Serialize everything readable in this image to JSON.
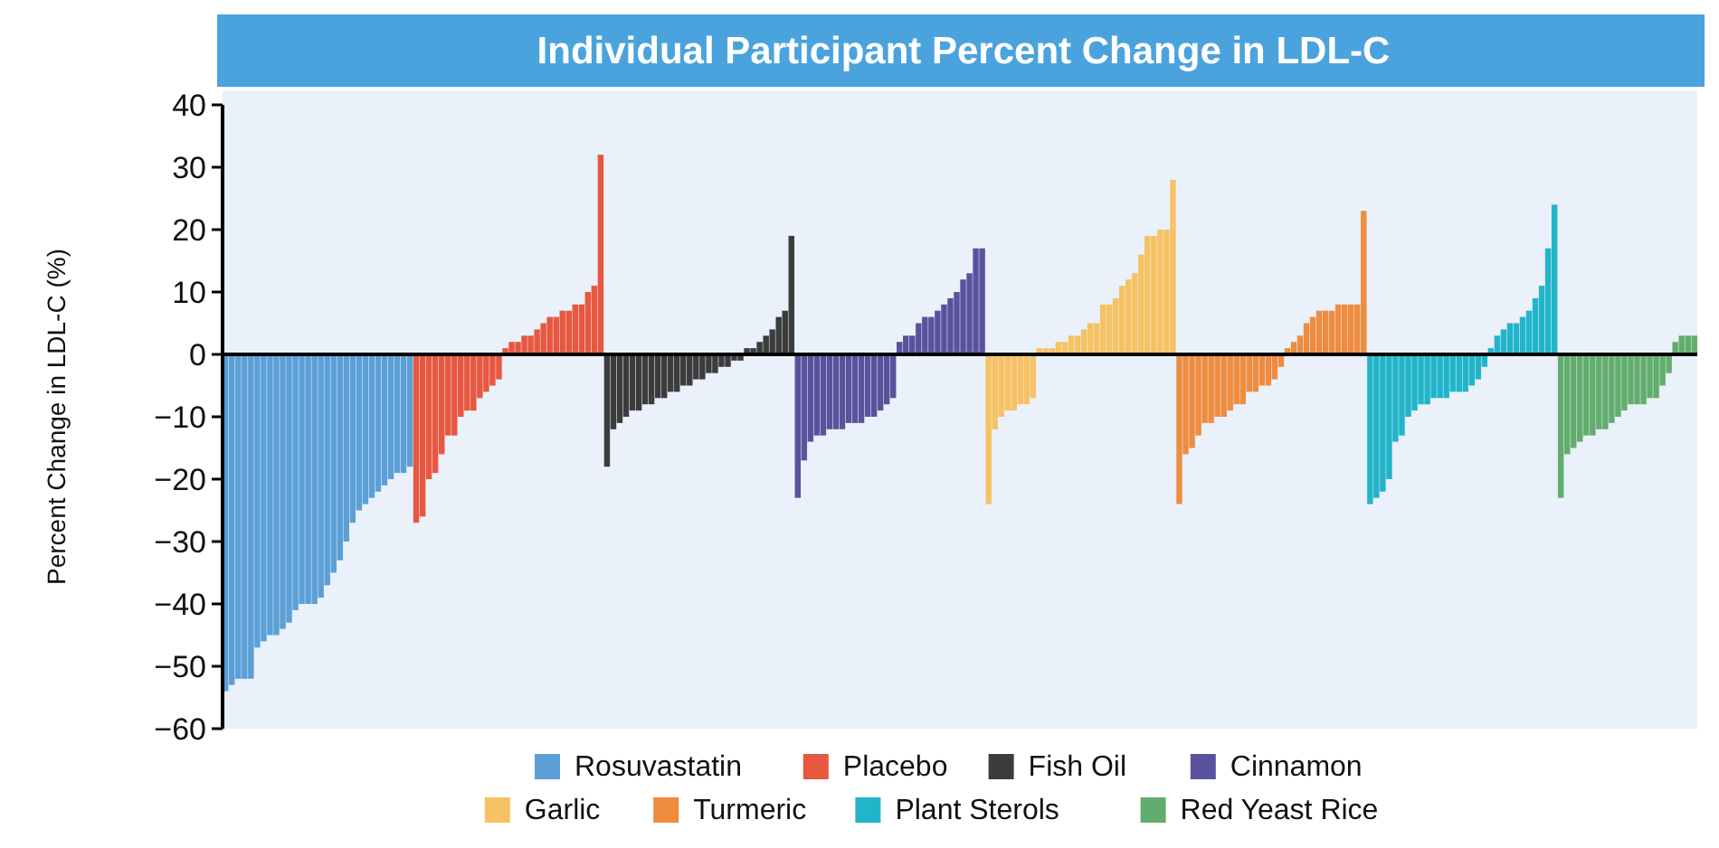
{
  "chart_data": {
    "type": "bar",
    "title": "Individual Participant Percent Change in LDL-C",
    "ylabel": "Percent Change in LDL-C (%)",
    "ylim": [
      -60,
      40
    ],
    "yticks": [
      -60,
      -50,
      -40,
      -30,
      -20,
      -10,
      0,
      10,
      20,
      30,
      40
    ],
    "legend": "bottom",
    "categories": [
      null,
      null,
      null,
      null,
      null,
      null,
      null,
      null,
      null,
      null,
      null,
      null,
      null,
      null,
      null,
      null,
      null,
      null,
      null,
      null,
      null,
      null,
      null,
      null,
      null,
      null,
      null,
      null,
      null,
      null,
      null,
      null,
      null,
      null,
      null,
      null,
      null,
      null,
      null,
      null,
      null,
      null,
      null,
      null,
      null,
      null,
      null,
      null,
      null,
      null,
      null,
      null,
      null,
      null,
      null,
      null,
      null,
      null,
      null,
      null,
      null,
      null,
      null,
      null,
      null,
      null,
      null,
      null,
      null,
      null,
      null,
      null,
      null,
      null,
      null,
      null,
      null,
      null,
      null,
      null,
      null,
      null,
      null,
      null,
      null,
      null,
      null,
      null,
      null,
      null,
      null,
      null,
      null,
      null,
      null,
      null,
      null,
      null,
      null,
      null,
      null,
      null,
      null,
      null,
      null,
      null,
      null,
      null,
      null,
      null,
      null,
      null,
      null,
      null,
      null,
      null,
      null,
      null,
      null,
      null,
      null,
      null,
      null,
      null,
      null,
      null,
      null,
      null,
      null,
      null,
      null,
      null,
      null,
      null,
      null,
      null,
      null,
      null,
      null,
      null,
      null,
      null,
      null,
      null,
      null,
      null,
      null,
      null,
      null,
      null,
      null,
      null,
      null,
      null,
      null,
      null,
      null,
      null,
      null,
      null,
      null,
      null,
      null,
      null,
      null,
      null,
      null,
      null,
      null,
      null,
      null,
      null,
      null,
      null,
      null,
      null,
      null,
      null,
      null,
      null,
      null,
      null,
      null,
      null,
      null,
      null,
      null,
      null,
      null,
      null,
      null,
      null,
      null,
      null,
      null,
      null,
      null,
      null,
      null,
      null,
      null,
      null,
      null,
      null,
      null,
      null,
      null,
      null,
      null,
      null,
      null,
      null,
      null,
      null,
      null,
      null,
      null,
      null,
      null,
      null,
      null,
      null,
      null,
      null,
      null,
      null,
      null,
      null,
      null,
      null,
      null,
      null
    ],
    "series": [
      {
        "name": "Rosuvastatin",
        "color": "#5b9fd6",
        "values": [
          -54,
          -53,
          -52,
          -52,
          -52,
          -47,
          -46,
          -45,
          -45,
          -44,
          -43,
          -41,
          -40,
          -40,
          -40,
          -39,
          -37,
          -35,
          -33,
          -30,
          -27,
          -25,
          -24,
          -23,
          -22,
          -21,
          -20,
          -19,
          -19,
          -18,
          null,
          null,
          null,
          null,
          null,
          null,
          null,
          null,
          null,
          null,
          null,
          null,
          null,
          null,
          null,
          null,
          null,
          null,
          null,
          null,
          null,
          null,
          null,
          null,
          null,
          null,
          null,
          null,
          null,
          null,
          null,
          null,
          null,
          null,
          null,
          null,
          null,
          null,
          null,
          null,
          null,
          null,
          null,
          null,
          null,
          null,
          null,
          null,
          null,
          null,
          null,
          null,
          null,
          null,
          null,
          null,
          null,
          null,
          null,
          null,
          null,
          null,
          null,
          null,
          null,
          null,
          null,
          null,
          null,
          null,
          null,
          null,
          null,
          null,
          null,
          null,
          null,
          null,
          null,
          null,
          null,
          null,
          null,
          null,
          null,
          null,
          null,
          null,
          null,
          null,
          null,
          null,
          null,
          null,
          null,
          null,
          null,
          null,
          null,
          null,
          null,
          null,
          null,
          null,
          null,
          null,
          null,
          null,
          null,
          null,
          null,
          null,
          null,
          null,
          null,
          null,
          null,
          null,
          null,
          null,
          null,
          null,
          null,
          null,
          null,
          null,
          null,
          null,
          null,
          null,
          null,
          null,
          null,
          null,
          null,
          null,
          null,
          null,
          null,
          null,
          null,
          null,
          null,
          null,
          null,
          null,
          null,
          null,
          null,
          null,
          null,
          null,
          null,
          null,
          null,
          null,
          null,
          null,
          null,
          null,
          null,
          null,
          null,
          null,
          null,
          null,
          null,
          null,
          null,
          null,
          null,
          null,
          null,
          null,
          null,
          null,
          null,
          null,
          null,
          null,
          null,
          null,
          null,
          null,
          null,
          null,
          null,
          null,
          null,
          null,
          null,
          null,
          null,
          null,
          null,
          null,
          null,
          null,
          null,
          null,
          null,
          null
        ]
      },
      {
        "name": "Placebo",
        "color": "#e8573f",
        "values": [
          null,
          null,
          null,
          null,
          null,
          null,
          null,
          null,
          null,
          null,
          null,
          null,
          null,
          null,
          null,
          null,
          null,
          null,
          null,
          null,
          null,
          null,
          null,
          null,
          null,
          null,
          null,
          null,
          null,
          null,
          -27,
          -26,
          -20,
          -19,
          -16,
          -13,
          -13,
          -10,
          -9,
          -9,
          -7,
          -6,
          -5,
          -4,
          1,
          2,
          2,
          3,
          3,
          4,
          5,
          6,
          6,
          7,
          7,
          8,
          8,
          10,
          11,
          32,
          null,
          null,
          null,
          null,
          null,
          null,
          null,
          null,
          null,
          null,
          null,
          null,
          null,
          null,
          null,
          null,
          null,
          null,
          null,
          null,
          null,
          null,
          null,
          null,
          null,
          null,
          null,
          null,
          null,
          null,
          null,
          null,
          null,
          null,
          null,
          null,
          null,
          null,
          null,
          null,
          null,
          null,
          null,
          null,
          null,
          null,
          null,
          null,
          null,
          null,
          null,
          null,
          null,
          null,
          null,
          null,
          null,
          null,
          null,
          null,
          null,
          null,
          null,
          null,
          null,
          null,
          null,
          null,
          null,
          null,
          null,
          null,
          null,
          null,
          null,
          null,
          null,
          null,
          null,
          null,
          null,
          null,
          null,
          null,
          null,
          null,
          null,
          null,
          null,
          null,
          null,
          null,
          null,
          null,
          null,
          null,
          null,
          null,
          null,
          null,
          null,
          null,
          null,
          null,
          null,
          null,
          null,
          null,
          null,
          null,
          null,
          null,
          null,
          null,
          null,
          null,
          null,
          null,
          null,
          null,
          null,
          null,
          null,
          null,
          null,
          null,
          null,
          null,
          null,
          null,
          null,
          null,
          null,
          null,
          null,
          null,
          null,
          null,
          null,
          null,
          null,
          null,
          null,
          null,
          null,
          null,
          null,
          null,
          null,
          null,
          null,
          null,
          null,
          null,
          null,
          null,
          null,
          null,
          null,
          null,
          null,
          null,
          null,
          null,
          null,
          null,
          null,
          null,
          null,
          null,
          null,
          null
        ]
      },
      {
        "name": "Fish Oil",
        "color": "#3c3c3c",
        "values": [
          null,
          null,
          null,
          null,
          null,
          null,
          null,
          null,
          null,
          null,
          null,
          null,
          null,
          null,
          null,
          null,
          null,
          null,
          null,
          null,
          null,
          null,
          null,
          null,
          null,
          null,
          null,
          null,
          null,
          null,
          null,
          null,
          null,
          null,
          null,
          null,
          null,
          null,
          null,
          null,
          null,
          null,
          null,
          null,
          null,
          null,
          null,
          null,
          null,
          null,
          null,
          null,
          null,
          null,
          null,
          null,
          null,
          null,
          null,
          null,
          -18,
          -12,
          -11,
          -10,
          -9,
          -9,
          -8,
          -8,
          -7,
          -7,
          -6,
          -6,
          -5,
          -5,
          -4,
          -4,
          -3,
          -3,
          -2,
          -2,
          -1,
          -1,
          1,
          1,
          2,
          3,
          4,
          6,
          7,
          19,
          null,
          null,
          null,
          null,
          null,
          null,
          null,
          null,
          null,
          null,
          null,
          null,
          null,
          null,
          null,
          null,
          null,
          null,
          null,
          null,
          null,
          null,
          null,
          null,
          null,
          null,
          null,
          null,
          null,
          null,
          null,
          null,
          null,
          null,
          null,
          null,
          null,
          null,
          null,
          null,
          null,
          null,
          null,
          null,
          null,
          null,
          null,
          null,
          null,
          null,
          null,
          null,
          null,
          null,
          null,
          null,
          null,
          null,
          null,
          null,
          null,
          null,
          null,
          null,
          null,
          null,
          null,
          null,
          null,
          null,
          null,
          null,
          null,
          null,
          null,
          null,
          null,
          null,
          null,
          null,
          null,
          null,
          null,
          null,
          null,
          null,
          null,
          null,
          null,
          null,
          null,
          null,
          null,
          null,
          null,
          null,
          null,
          null,
          null,
          null,
          null,
          null,
          null,
          null,
          null,
          null,
          null,
          null,
          null,
          null,
          null,
          null,
          null,
          null,
          null,
          null,
          null,
          null,
          null,
          null,
          null,
          null,
          null,
          null,
          null,
          null,
          null,
          null,
          null,
          null,
          null,
          null,
          null,
          null,
          null,
          null,
          null,
          null,
          null,
          null,
          null,
          null
        ]
      },
      {
        "name": "Cinnamon",
        "color": "#5b529e",
        "values": [
          null,
          null,
          null,
          null,
          null,
          null,
          null,
          null,
          null,
          null,
          null,
          null,
          null,
          null,
          null,
          null,
          null,
          null,
          null,
          null,
          null,
          null,
          null,
          null,
          null,
          null,
          null,
          null,
          null,
          null,
          null,
          null,
          null,
          null,
          null,
          null,
          null,
          null,
          null,
          null,
          null,
          null,
          null,
          null,
          null,
          null,
          null,
          null,
          null,
          null,
          null,
          null,
          null,
          null,
          null,
          null,
          null,
          null,
          null,
          null,
          null,
          null,
          null,
          null,
          null,
          null,
          null,
          null,
          null,
          null,
          null,
          null,
          null,
          null,
          null,
          null,
          null,
          null,
          null,
          null,
          null,
          null,
          null,
          null,
          null,
          null,
          null,
          null,
          null,
          null,
          -23,
          -17,
          -14,
          -13,
          -13,
          -12,
          -12,
          -12,
          -11,
          -11,
          -11,
          -10,
          -10,
          -9,
          -8,
          -7,
          2,
          3,
          3,
          5,
          6,
          6,
          7,
          8,
          9,
          10,
          12,
          13,
          17,
          17,
          null,
          null,
          null,
          null,
          null,
          null,
          null,
          null,
          null,
          null,
          null,
          null,
          null,
          null,
          null,
          null,
          null,
          null,
          null,
          null,
          null,
          null,
          null,
          null,
          null,
          null,
          null,
          null,
          null,
          null,
          null,
          null,
          null,
          null,
          null,
          null,
          null,
          null,
          null,
          null,
          null,
          null,
          null,
          null,
          null,
          null,
          null,
          null,
          null,
          null,
          null,
          null,
          null,
          null,
          null,
          null,
          null,
          null,
          null,
          null,
          null,
          null,
          null,
          null,
          null,
          null,
          null,
          null,
          null,
          null,
          null,
          null,
          null,
          null,
          null,
          null,
          null,
          null,
          null,
          null,
          null,
          null,
          null,
          null,
          null,
          null,
          null,
          null,
          null,
          null,
          null,
          null,
          null,
          null,
          null,
          null,
          null,
          null,
          null,
          null,
          null,
          null,
          null,
          null,
          null,
          null,
          null,
          null,
          null,
          null,
          null,
          null
        ]
      },
      {
        "name": "Garlic",
        "color": "#f6c264",
        "values": [
          null,
          null,
          null,
          null,
          null,
          null,
          null,
          null,
          null,
          null,
          null,
          null,
          null,
          null,
          null,
          null,
          null,
          null,
          null,
          null,
          null,
          null,
          null,
          null,
          null,
          null,
          null,
          null,
          null,
          null,
          null,
          null,
          null,
          null,
          null,
          null,
          null,
          null,
          null,
          null,
          null,
          null,
          null,
          null,
          null,
          null,
          null,
          null,
          null,
          null,
          null,
          null,
          null,
          null,
          null,
          null,
          null,
          null,
          null,
          null,
          null,
          null,
          null,
          null,
          null,
          null,
          null,
          null,
          null,
          null,
          null,
          null,
          null,
          null,
          null,
          null,
          null,
          null,
          null,
          null,
          null,
          null,
          null,
          null,
          null,
          null,
          null,
          null,
          null,
          null,
          null,
          null,
          null,
          null,
          null,
          null,
          null,
          null,
          null,
          null,
          null,
          null,
          null,
          null,
          null,
          null,
          null,
          null,
          null,
          null,
          null,
          null,
          null,
          null,
          null,
          null,
          null,
          null,
          null,
          null,
          -24,
          -12,
          -10,
          -9,
          -9,
          -8,
          -8,
          -7,
          1,
          1,
          1,
          2,
          2,
          3,
          3,
          4,
          5,
          5,
          8,
          8,
          9,
          11,
          12,
          13,
          16,
          19,
          19,
          20,
          20,
          28,
          null,
          null,
          null,
          null,
          null,
          null,
          null,
          null,
          null,
          null,
          null,
          null,
          null,
          null,
          null,
          null,
          null,
          null,
          null,
          null,
          null,
          null,
          null,
          null,
          null,
          null,
          null,
          null,
          null,
          null,
          null,
          null,
          null,
          null,
          null,
          null,
          null,
          null,
          null,
          null,
          null,
          null,
          null,
          null,
          null,
          null,
          null,
          null,
          null,
          null,
          null,
          null,
          null,
          null,
          null,
          null,
          null,
          null,
          null,
          null,
          null,
          null,
          null,
          null,
          null,
          null,
          null,
          null,
          null,
          null,
          null,
          null,
          null,
          null,
          null,
          null,
          null,
          null,
          null,
          null,
          null,
          null
        ]
      },
      {
        "name": "Turmeric",
        "color": "#ee8c40",
        "values": [
          null,
          null,
          null,
          null,
          null,
          null,
          null,
          null,
          null,
          null,
          null,
          null,
          null,
          null,
          null,
          null,
          null,
          null,
          null,
          null,
          null,
          null,
          null,
          null,
          null,
          null,
          null,
          null,
          null,
          null,
          null,
          null,
          null,
          null,
          null,
          null,
          null,
          null,
          null,
          null,
          null,
          null,
          null,
          null,
          null,
          null,
          null,
          null,
          null,
          null,
          null,
          null,
          null,
          null,
          null,
          null,
          null,
          null,
          null,
          null,
          null,
          null,
          null,
          null,
          null,
          null,
          null,
          null,
          null,
          null,
          null,
          null,
          null,
          null,
          null,
          null,
          null,
          null,
          null,
          null,
          null,
          null,
          null,
          null,
          null,
          null,
          null,
          null,
          null,
          null,
          null,
          null,
          null,
          null,
          null,
          null,
          null,
          null,
          null,
          null,
          null,
          null,
          null,
          null,
          null,
          null,
          null,
          null,
          null,
          null,
          null,
          null,
          null,
          null,
          null,
          null,
          null,
          null,
          null,
          null,
          null,
          null,
          null,
          null,
          null,
          null,
          null,
          null,
          null,
          null,
          null,
          null,
          null,
          null,
          null,
          null,
          null,
          null,
          null,
          null,
          null,
          null,
          null,
          null,
          null,
          null,
          null,
          null,
          null,
          null,
          -24,
          -16,
          -15,
          -13,
          -11,
          -11,
          -10,
          -10,
          -9,
          -8,
          -8,
          -6,
          -6,
          -5,
          -5,
          -4,
          -2,
          1,
          2,
          3,
          5,
          6,
          7,
          7,
          7,
          8,
          8,
          8,
          8,
          23,
          null,
          null,
          null,
          null,
          null,
          null,
          null,
          null,
          null,
          null,
          null,
          null,
          null,
          null,
          null,
          null,
          null,
          null,
          null,
          null,
          null,
          null,
          null,
          null,
          null,
          null,
          null,
          null,
          null,
          null,
          null,
          null,
          null,
          null,
          null,
          null,
          null,
          null,
          null,
          null,
          null,
          null,
          null,
          null,
          null,
          null,
          null,
          null,
          null,
          null,
          null,
          null
        ]
      },
      {
        "name": "Plant Sterols",
        "color": "#22b5c9",
        "values": [
          null,
          null,
          null,
          null,
          null,
          null,
          null,
          null,
          null,
          null,
          null,
          null,
          null,
          null,
          null,
          null,
          null,
          null,
          null,
          null,
          null,
          null,
          null,
          null,
          null,
          null,
          null,
          null,
          null,
          null,
          null,
          null,
          null,
          null,
          null,
          null,
          null,
          null,
          null,
          null,
          null,
          null,
          null,
          null,
          null,
          null,
          null,
          null,
          null,
          null,
          null,
          null,
          null,
          null,
          null,
          null,
          null,
          null,
          null,
          null,
          null,
          null,
          null,
          null,
          null,
          null,
          null,
          null,
          null,
          null,
          null,
          null,
          null,
          null,
          null,
          null,
          null,
          null,
          null,
          null,
          null,
          null,
          null,
          null,
          null,
          null,
          null,
          null,
          null,
          null,
          null,
          null,
          null,
          null,
          null,
          null,
          null,
          null,
          null,
          null,
          null,
          null,
          null,
          null,
          null,
          null,
          null,
          null,
          null,
          null,
          null,
          null,
          null,
          null,
          null,
          null,
          null,
          null,
          null,
          null,
          null,
          null,
          null,
          null,
          null,
          null,
          null,
          null,
          null,
          null,
          null,
          null,
          null,
          null,
          null,
          null,
          null,
          null,
          null,
          null,
          null,
          null,
          null,
          null,
          null,
          null,
          null,
          null,
          null,
          null,
          null,
          null,
          null,
          null,
          null,
          null,
          null,
          null,
          null,
          null,
          null,
          null,
          null,
          null,
          null,
          null,
          null,
          null,
          null,
          null,
          null,
          null,
          null,
          null,
          null,
          null,
          null,
          null,
          null,
          null,
          -24,
          -23,
          -22,
          -20,
          -14,
          -13,
          -10,
          -9,
          -8,
          -8,
          -7,
          -7,
          -7,
          -6,
          -6,
          -6,
          -5,
          -4,
          -2,
          1,
          3,
          4,
          5,
          5,
          6,
          7,
          9,
          11,
          17,
          24,
          null,
          null,
          null,
          null,
          null,
          null,
          null,
          null,
          null,
          null,
          null,
          null,
          null,
          null,
          null,
          null,
          null,
          null,
          null,
          null,
          null,
          null
        ]
      },
      {
        "name": "Red Yeast Rice",
        "color": "#62ad6e",
        "values": [
          null,
          null,
          null,
          null,
          null,
          null,
          null,
          null,
          null,
          null,
          null,
          null,
          null,
          null,
          null,
          null,
          null,
          null,
          null,
          null,
          null,
          null,
          null,
          null,
          null,
          null,
          null,
          null,
          null,
          null,
          null,
          null,
          null,
          null,
          null,
          null,
          null,
          null,
          null,
          null,
          null,
          null,
          null,
          null,
          null,
          null,
          null,
          null,
          null,
          null,
          null,
          null,
          null,
          null,
          null,
          null,
          null,
          null,
          null,
          null,
          null,
          null,
          null,
          null,
          null,
          null,
          null,
          null,
          null,
          null,
          null,
          null,
          null,
          null,
          null,
          null,
          null,
          null,
          null,
          null,
          null,
          null,
          null,
          null,
          null,
          null,
          null,
          null,
          null,
          null,
          null,
          null,
          null,
          null,
          null,
          null,
          null,
          null,
          null,
          null,
          null,
          null,
          null,
          null,
          null,
          null,
          null,
          null,
          null,
          null,
          null,
          null,
          null,
          null,
          null,
          null,
          null,
          null,
          null,
          null,
          null,
          null,
          null,
          null,
          null,
          null,
          null,
          null,
          null,
          null,
          null,
          null,
          null,
          null,
          null,
          null,
          null,
          null,
          null,
          null,
          null,
          null,
          null,
          null,
          null,
          null,
          null,
          null,
          null,
          null,
          null,
          null,
          null,
          null,
          null,
          null,
          null,
          null,
          null,
          null,
          null,
          null,
          null,
          null,
          null,
          null,
          null,
          null,
          null,
          null,
          null,
          null,
          null,
          null,
          null,
          null,
          null,
          null,
          null,
          null,
          null,
          null,
          null,
          null,
          null,
          null,
          null,
          null,
          null,
          null,
          null,
          null,
          null,
          null,
          null,
          null,
          null,
          null,
          null,
          null,
          null,
          null,
          null,
          null,
          null,
          null,
          null,
          null,
          null,
          null,
          -23,
          -16,
          -15,
          -14,
          -13,
          -13,
          -12,
          -12,
          -11,
          -10,
          -9,
          -8,
          -8,
          -8,
          -7,
          -7,
          -5,
          -3,
          2,
          3,
          3,
          3
        ]
      }
    ]
  }
}
